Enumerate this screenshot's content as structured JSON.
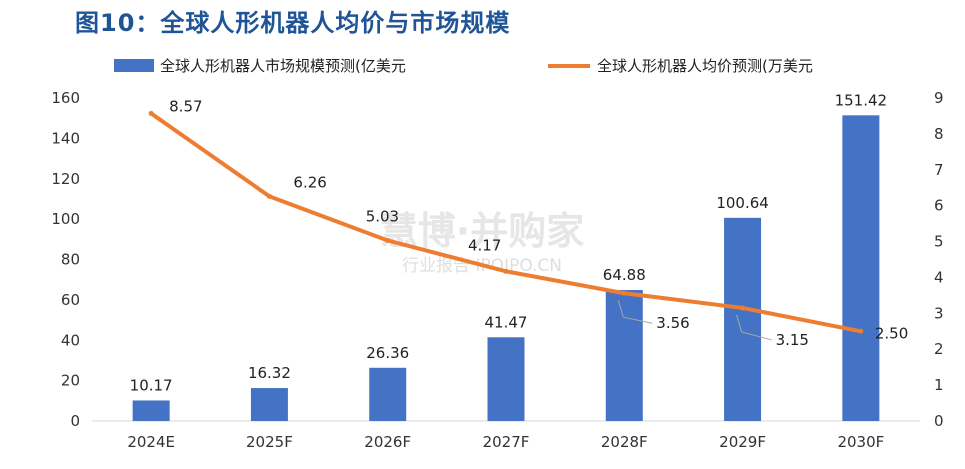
{
  "title": "图10：全球人形机器人均价与市场规模",
  "watermark": {
    "main": "慧博·并购家",
    "sub": "行业报告 IPOIPO.CN"
  },
  "chart_data": {
    "type": "bar+line",
    "categories": [
      "2024E",
      "2025F",
      "2026F",
      "2027F",
      "2028F",
      "2029F",
      "2030F"
    ],
    "series": [
      {
        "name": "全球人形机器人市场规模预测(亿美元",
        "type": "bar",
        "axis": "left",
        "color": "#4472c4",
        "values": [
          10.17,
          16.32,
          26.36,
          41.47,
          64.88,
          100.64,
          151.42
        ],
        "labels": [
          "10.17",
          "16.32",
          "26.36",
          "41.47",
          "64.88",
          "100.64",
          "151.42"
        ]
      },
      {
        "name": "全球人形机器人均价预测(万美元",
        "type": "line",
        "axis": "right",
        "color": "#ed7d31",
        "values": [
          8.57,
          6.26,
          5.03,
          4.17,
          3.56,
          3.15,
          2.5
        ],
        "labels": [
          "8.57",
          "6.26",
          "5.03",
          "4.17",
          "3.56",
          "3.15",
          "2.50"
        ]
      }
    ],
    "y_left": {
      "min": 0,
      "max": 160,
      "ticks": [
        "0",
        "20",
        "40",
        "60",
        "80",
        "100",
        "120",
        "140",
        "160"
      ]
    },
    "y_right": {
      "min": 0,
      "max": 9,
      "ticks": [
        "0",
        "1",
        "2",
        "3",
        "4",
        "5",
        "6",
        "7",
        "8",
        "9"
      ]
    },
    "grid": false,
    "legend": "top"
  }
}
